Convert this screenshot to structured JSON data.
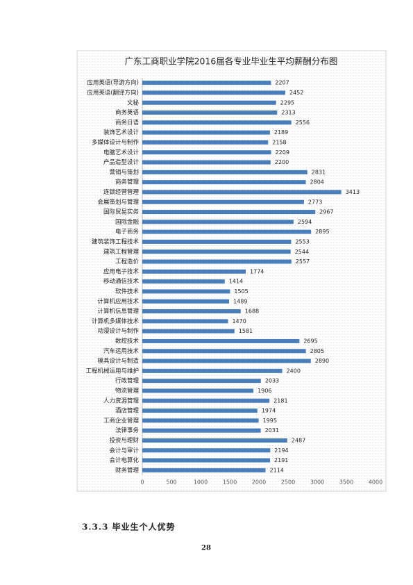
{
  "chart_data": {
    "type": "bar",
    "orientation": "horizontal",
    "title": "广东工商职业学院2016届各专业毕业生平均薪酬分布图",
    "categories": [
      "应用英语(导游方向)",
      "应用英语(翻译方向)",
      "文秘",
      "商务英语",
      "商务日语",
      "装饰艺术设计",
      "多媒体设计与制作",
      "电脑艺术设计",
      "产品造型设计",
      "营销与策划",
      "商务管理",
      "连锁经营管理",
      "会展策划与管理",
      "国际贸易实务",
      "国际金融",
      "电子商务",
      "建筑装饰工程技术",
      "建筑工程管理",
      "工程造价",
      "应用电子技术",
      "移动通信技术",
      "软件技术",
      "计算机应用技术",
      "计算机信息管理",
      "计算机多媒体技术",
      "动漫设计与制作",
      "数控技术",
      "汽车运用技术",
      "模具设计与制造",
      "工程机械运用与维护",
      "行政管理",
      "物流管理",
      "人力资源管理",
      "酒店管理",
      "工商企业管理",
      "法律事务",
      "投资与理财",
      "会计与审计",
      "会计电算化",
      "财务管理"
    ],
    "values": [
      2207,
      2452,
      2295,
      2313,
      2556,
      2189,
      2158,
      2209,
      2200,
      2831,
      2804,
      3413,
      2773,
      2967,
      2594,
      2895,
      2553,
      2544,
      2557,
      1774,
      1414,
      1505,
      1489,
      1688,
      1470,
      1581,
      2695,
      2805,
      2890,
      2400,
      2033,
      1906,
      2181,
      1974,
      1995,
      2031,
      2487,
      2194,
      2191,
      2114
    ],
    "color": "#4a7ebb",
    "xlim": [
      0,
      4000
    ],
    "xticks": [
      0,
      500,
      1000,
      1500,
      2000,
      2500,
      3000,
      3500,
      4000
    ],
    "grid": false
  },
  "document": {
    "heading": "3.3.3 毕业生个人优势",
    "page_number": "28"
  }
}
